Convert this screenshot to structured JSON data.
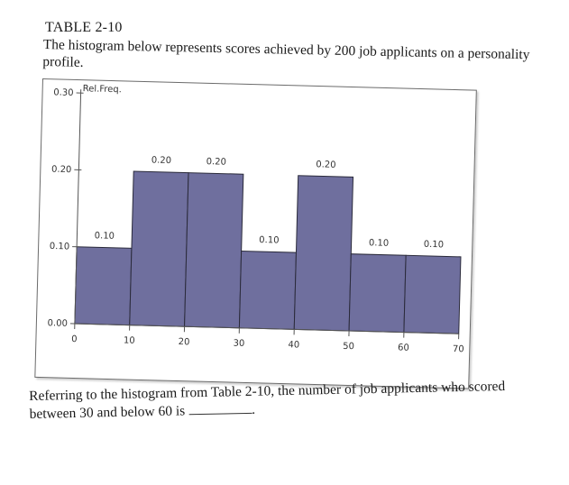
{
  "header": {
    "table_label": "TABLE 2-10",
    "description": "The histogram below represents scores achieved by 200 job applicants on a personality profile."
  },
  "question": {
    "text": "Referring to the histogram from Table 2-10, the number of job applicants who scored between 30 and below 60 is",
    "end_mark": "."
  },
  "chart_data": {
    "type": "bar",
    "ylabel": "Rel.Freq.",
    "xlabel": "",
    "x_ticks": [
      0,
      10,
      20,
      30,
      40,
      50,
      60,
      70
    ],
    "y_ticks": [
      "0.00",
      "0.10",
      "0.20",
      "0.30"
    ],
    "xlim": [
      0,
      70
    ],
    "ylim": [
      0,
      0.3
    ],
    "bins": [
      [
        0,
        10
      ],
      [
        10,
        20
      ],
      [
        20,
        30
      ],
      [
        30,
        40
      ],
      [
        40,
        50
      ],
      [
        50,
        60
      ],
      [
        60,
        70
      ]
    ],
    "values": [
      0.1,
      0.2,
      0.2,
      0.1,
      0.2,
      0.1,
      0.1
    ],
    "value_labels": [
      "0.10",
      "0.20",
      "0.20",
      "0.10",
      "0.20",
      "0.10",
      "0.10"
    ],
    "bar_color": "#6f6f9e",
    "grid": false
  }
}
